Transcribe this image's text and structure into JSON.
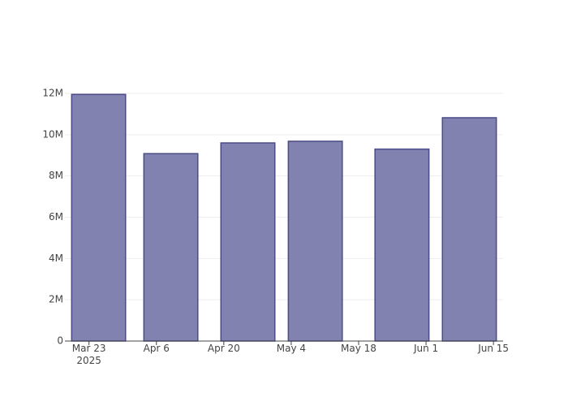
{
  "chart_data": {
    "type": "bar",
    "x": [
      "2025-03-25",
      "2025-04-09",
      "2025-04-25",
      "2025-05-09",
      "2025-05-27",
      "2025-06-10"
    ],
    "values": [
      11950000,
      9080000,
      9600000,
      9680000,
      9300000,
      10820000
    ],
    "color": "#7f7faf",
    "line_color": "#4b4b87",
    "xlim": [
      "2025-03-18",
      "2025-06-17"
    ],
    "xticks": [
      {
        "value": "2025-03-23",
        "label": "Mar 23\n2025"
      },
      {
        "value": "2025-04-06",
        "label": "Apr 6"
      },
      {
        "value": "2025-04-20",
        "label": "Apr 20"
      },
      {
        "value": "2025-05-04",
        "label": "May 4"
      },
      {
        "value": "2025-05-18",
        "label": "May 18"
      },
      {
        "value": "2025-06-01",
        "label": "Jun 1"
      },
      {
        "value": "2025-06-15",
        "label": "Jun 15"
      }
    ],
    "ylim": [
      0,
      12000000
    ],
    "yticks": [
      0,
      {
        "value": 2000000,
        "label": "2M"
      },
      {
        "value": 4000000,
        "label": "4M"
      },
      {
        "value": 6000000,
        "label": "6M"
      },
      {
        "value": 8000000,
        "label": "8M"
      },
      {
        "value": 10000000,
        "label": "10M"
      },
      {
        "value": 12000000,
        "label": "12M"
      }
    ],
    "grid": true
  }
}
